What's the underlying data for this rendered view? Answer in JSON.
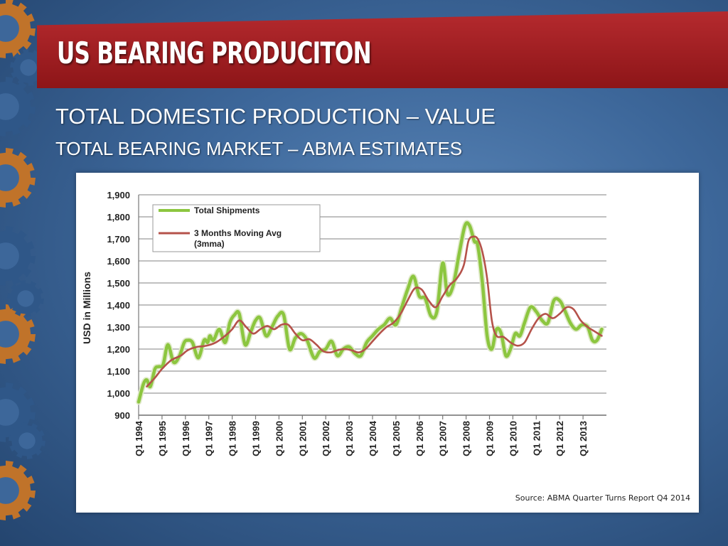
{
  "slide": {
    "title": "US BEARING PRODUCITON",
    "subtitle1": "TOTAL DOMESTIC PRODUCTION – VALUE",
    "subtitle2": "TOTAL BEARING MARKET – ABMA ESTIMATES",
    "source": "Source:  ABMA Quarter Turns Report Q4 2014"
  },
  "colors": {
    "background": "#3d679a",
    "banner": "#a81f23",
    "gear": "#c0732a",
    "shipments": "#8cc63f",
    "moving_avg": "#b5524a"
  },
  "chart_data": {
    "type": "line",
    "title": "",
    "xlabel": "",
    "ylabel": "USD in Millions",
    "ylim": [
      900,
      1900
    ],
    "yticks": [
      900,
      1000,
      1100,
      1200,
      1300,
      1400,
      1500,
      1600,
      1700,
      1800,
      1900
    ],
    "ytick_labels": [
      "900",
      "1,000",
      "1,100",
      "1,200",
      "1,300",
      "1,400",
      "1,500",
      "1,600",
      "1,700",
      "1,800",
      "1,900"
    ],
    "xlim": [
      1994,
      2014
    ],
    "xticks": [
      1994,
      1995,
      1996,
      1997,
      1998,
      1999,
      2000,
      2001,
      2002,
      2003,
      2004,
      2005,
      2006,
      2007,
      2008,
      2009,
      2010,
      2011,
      2012,
      2013
    ],
    "xtick_labels": [
      "Q1 1994",
      "Q1 1995",
      "Q1 1996",
      "Q1 1997",
      "Q1 1998",
      "Q1 1999",
      "Q1 2000",
      "Q1 2001",
      "Q1 2002",
      "Q1 2003",
      "Q1 2004",
      "Q1 2005",
      "Q1 2006",
      "Q1 2007",
      "Q1 2008",
      "Q1 2009",
      "Q1 2010",
      "Q1 2011",
      "Q1 2012",
      "Q1 2013"
    ],
    "grid": true,
    "legend_position": "top-left",
    "series": [
      {
        "name": "Total Shipments",
        "color": "#8cc63f",
        "x": [
          1994.0,
          1994.2,
          1994.35,
          1994.5,
          1994.7,
          1994.85,
          1995.05,
          1995.25,
          1995.5,
          1995.75,
          1995.95,
          1996.1,
          1996.3,
          1996.55,
          1996.8,
          1996.95,
          1997.05,
          1997.2,
          1997.45,
          1997.7,
          1997.9,
          1998.1,
          1998.3,
          1998.55,
          1998.8,
          1999.0,
          1999.2,
          1999.45,
          1999.7,
          1999.95,
          2000.2,
          2000.45,
          2000.7,
          2000.95,
          2001.2,
          2001.5,
          2001.75,
          2002.0,
          2002.25,
          2002.5,
          2002.75,
          2003.0,
          2003.25,
          2003.5,
          2003.75,
          2004.0,
          2004.25,
          2004.5,
          2004.75,
          2005.0,
          2005.25,
          2005.5,
          2005.75,
          2006.0,
          2006.25,
          2006.5,
          2006.75,
          2007.0,
          2007.2,
          2007.45,
          2007.7,
          2007.95,
          2008.15,
          2008.35,
          2008.5,
          2008.7,
          2008.9,
          2009.1,
          2009.3,
          2009.5,
          2009.7,
          2009.9,
          2010.1,
          2010.3,
          2010.5,
          2010.75,
          2011.0,
          2011.25,
          2011.5,
          2011.75,
          2012.0,
          2012.2,
          2012.45,
          2012.7,
          2012.95,
          2013.2,
          2013.4,
          2013.6,
          2013.8
        ],
        "values": [
          960,
          1040,
          1060,
          1030,
          1110,
          1120,
          1130,
          1220,
          1140,
          1170,
          1230,
          1240,
          1230,
          1160,
          1240,
          1230,
          1260,
          1240,
          1290,
          1230,
          1320,
          1355,
          1360,
          1220,
          1280,
          1330,
          1340,
          1260,
          1300,
          1350,
          1355,
          1200,
          1250,
          1270,
          1240,
          1160,
          1190,
          1200,
          1235,
          1170,
          1200,
          1210,
          1180,
          1170,
          1230,
          1260,
          1290,
          1310,
          1340,
          1310,
          1390,
          1470,
          1530,
          1440,
          1430,
          1350,
          1370,
          1590,
          1450,
          1490,
          1630,
          1760,
          1760,
          1690,
          1670,
          1500,
          1260,
          1200,
          1290,
          1270,
          1170,
          1200,
          1270,
          1260,
          1320,
          1390,
          1370,
          1330,
          1320,
          1420,
          1420,
          1380,
          1320,
          1290,
          1310,
          1300,
          1240,
          1240,
          1290
        ]
      },
      {
        "name": "3 Months  Moving Avg\n(3mma)",
        "color": "#b5524a",
        "x": [
          1994.35,
          1994.7,
          1995.0,
          1995.4,
          1995.8,
          1996.1,
          1996.5,
          1996.9,
          1997.3,
          1997.7,
          1998.0,
          1998.3,
          1998.6,
          1998.9,
          1999.2,
          1999.5,
          1999.8,
          2000.1,
          2000.4,
          2000.7,
          2001.0,
          2001.3,
          2001.6,
          2001.9,
          2002.2,
          2002.5,
          2002.8,
          2003.1,
          2003.4,
          2003.7,
          2004.0,
          2004.3,
          2004.6,
          2004.9,
          2005.2,
          2005.5,
          2005.8,
          2006.1,
          2006.4,
          2006.7,
          2007.0,
          2007.3,
          2007.6,
          2007.9,
          2008.1,
          2008.3,
          2008.5,
          2008.7,
          2008.9,
          2009.1,
          2009.3,
          2009.6,
          2009.9,
          2010.2,
          2010.5,
          2010.8,
          2011.1,
          2011.4,
          2011.7,
          2012.0,
          2012.3,
          2012.6,
          2012.9,
          2013.2,
          2013.5,
          2013.8
        ],
        "values": [
          1030,
          1070,
          1110,
          1150,
          1170,
          1195,
          1210,
          1215,
          1230,
          1260,
          1290,
          1330,
          1300,
          1270,
          1290,
          1305,
          1290,
          1310,
          1310,
          1270,
          1240,
          1245,
          1220,
          1190,
          1185,
          1195,
          1200,
          1195,
          1185,
          1200,
          1235,
          1270,
          1300,
          1320,
          1360,
          1420,
          1475,
          1470,
          1420,
          1390,
          1440,
          1490,
          1520,
          1580,
          1690,
          1710,
          1700,
          1640,
          1520,
          1330,
          1260,
          1255,
          1230,
          1215,
          1230,
          1290,
          1340,
          1360,
          1340,
          1360,
          1390,
          1380,
          1330,
          1300,
          1280,
          1260
        ]
      }
    ]
  }
}
